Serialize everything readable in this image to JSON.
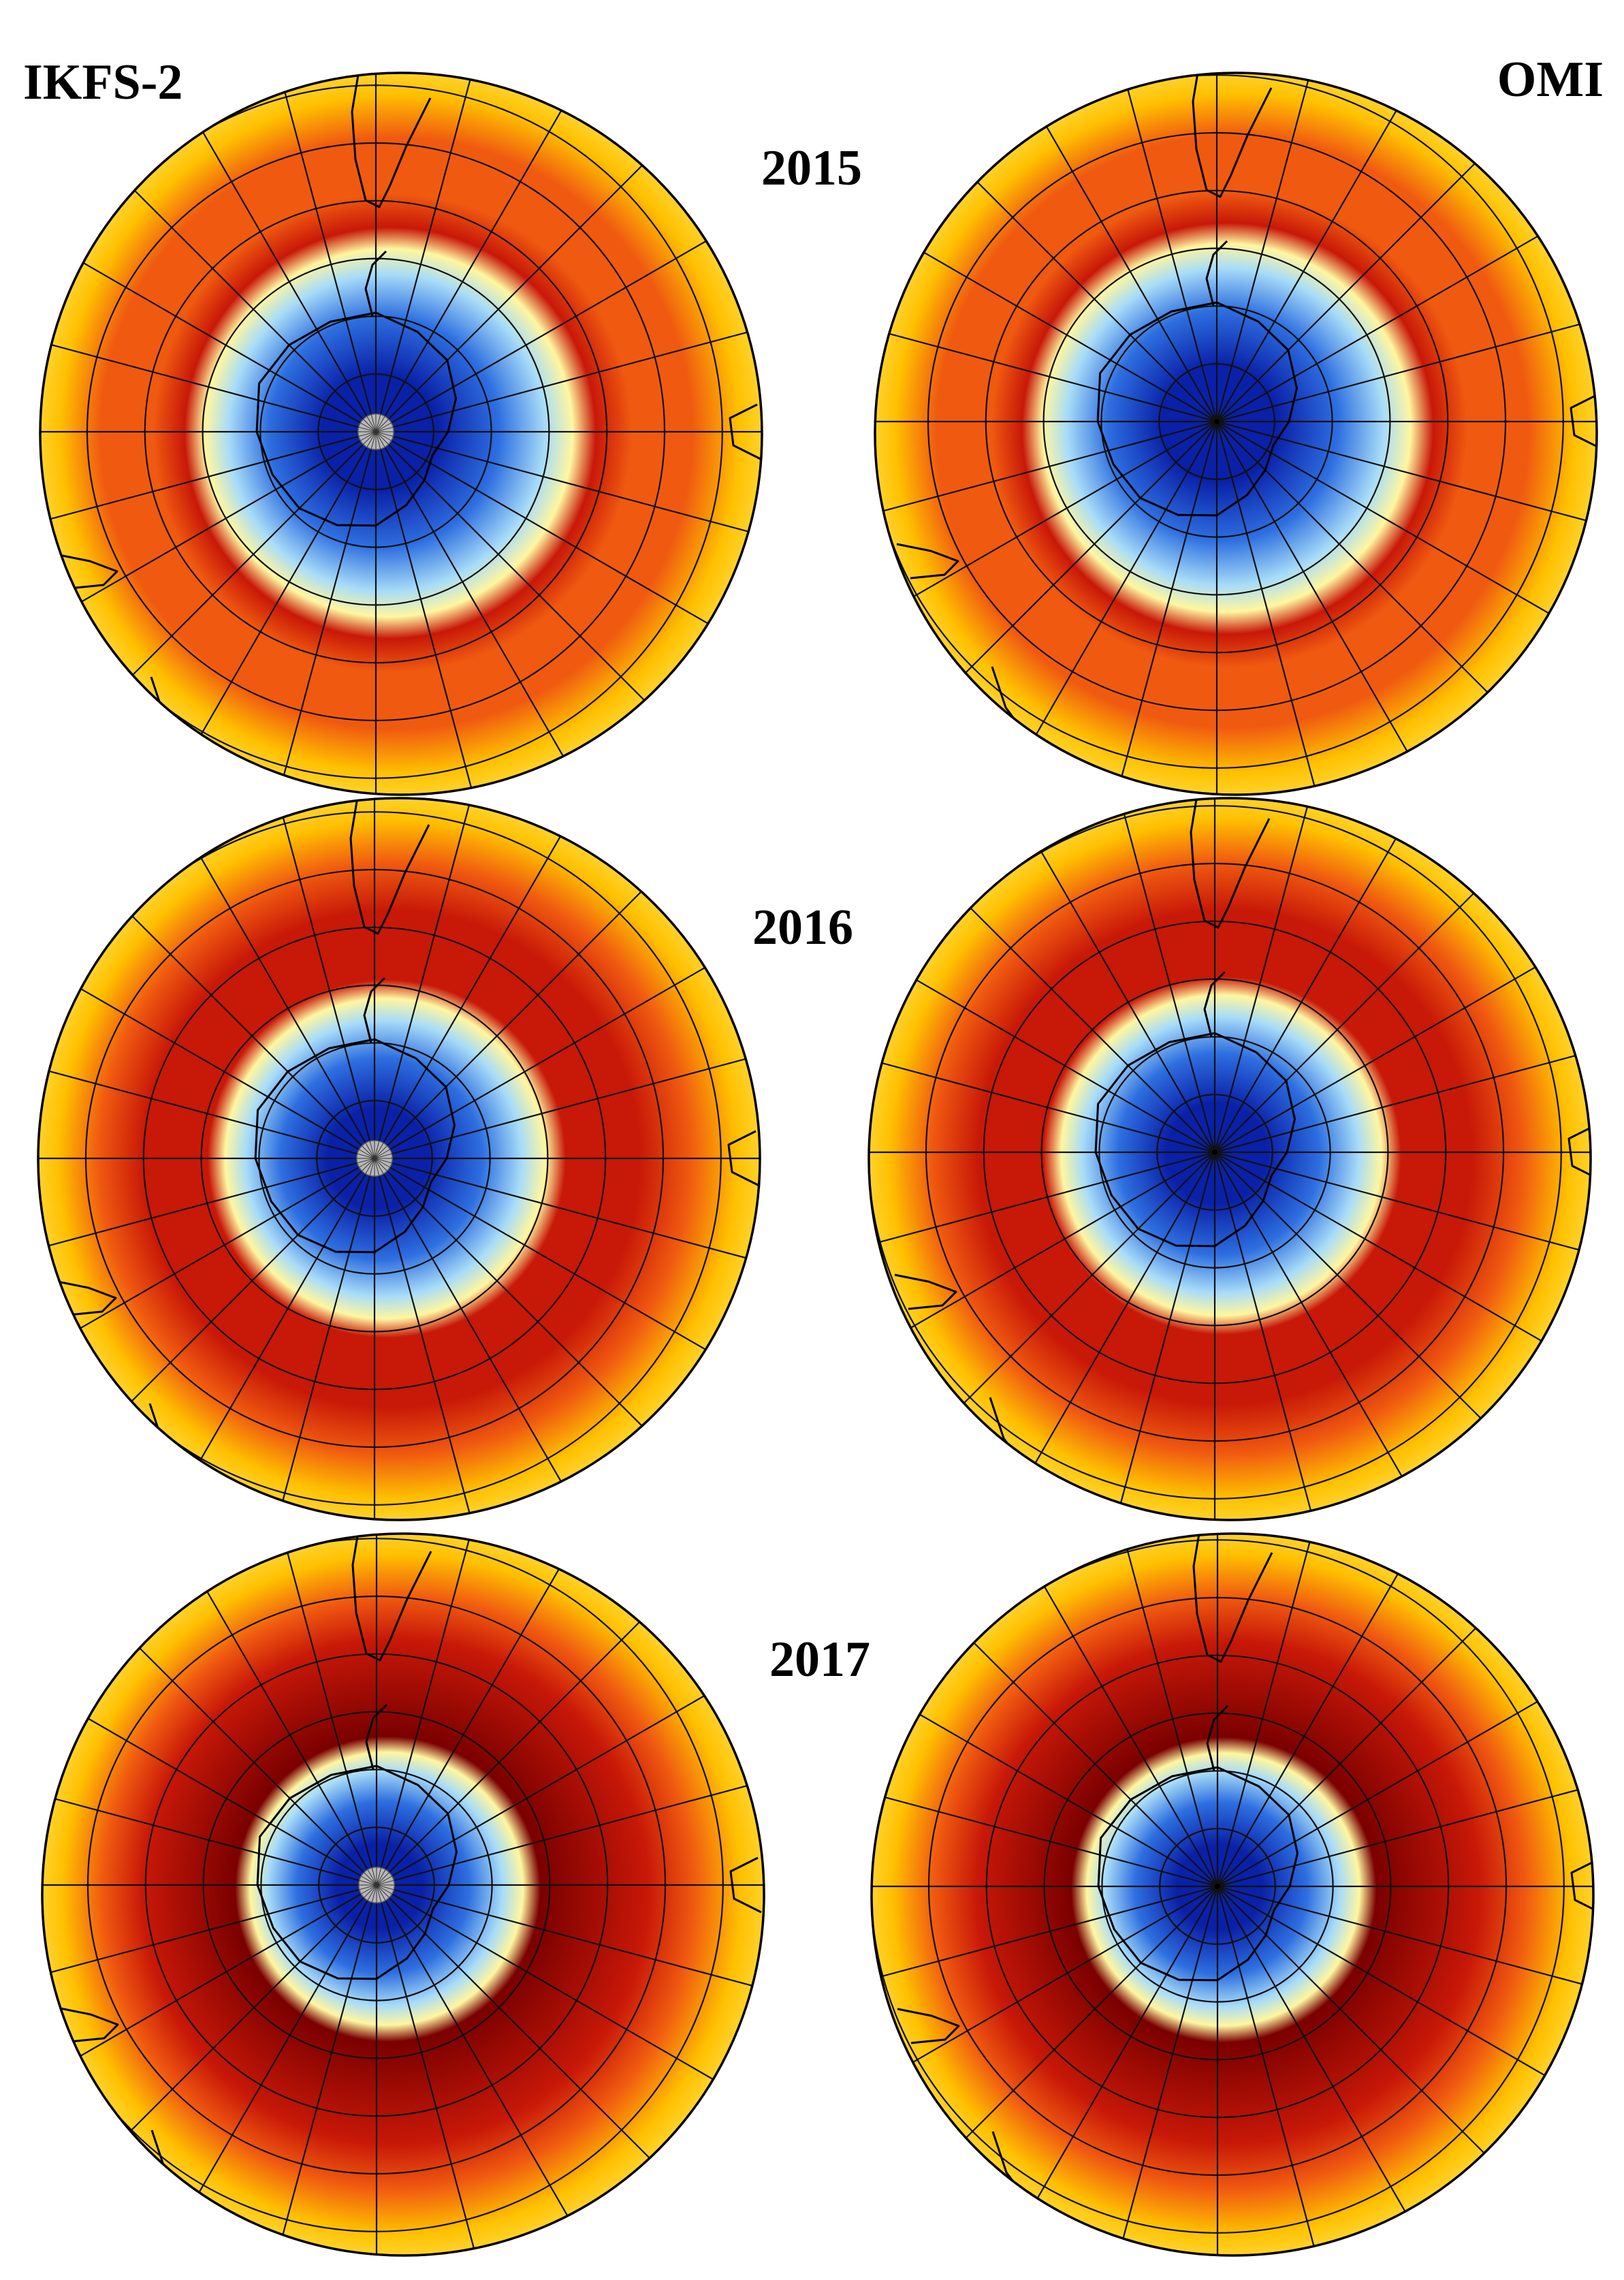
{
  "figure": {
    "left_label": "IKFS-2",
    "right_label": "OMI",
    "years": [
      "2015",
      "2016",
      "2017"
    ]
  },
  "colors": {
    "hole_core": "#0a20a8",
    "hole_mid": "#2e6fe0",
    "hole_edge": "#a8dcf8",
    "transition": "#fff6a0",
    "outer": "#ffc000",
    "collar": "#f05a10",
    "collar_peak": "#c81808",
    "collar_max": "#7a0000",
    "grid_line": "#111111",
    "pole_disc": "#b8b8b8"
  },
  "maps": [
    {
      "instrument": "IKFS-2",
      "year": "2015",
      "hole_intensity": 1.0,
      "collar_intensity": 0.55,
      "pole_gap": true
    },
    {
      "instrument": "OMI",
      "year": "2015",
      "hole_intensity": 1.0,
      "collar_intensity": 0.5,
      "pole_gap": false
    },
    {
      "instrument": "IKFS-2",
      "year": "2016",
      "hole_intensity": 0.85,
      "collar_intensity": 0.85,
      "pole_gap": true
    },
    {
      "instrument": "OMI",
      "year": "2016",
      "hole_intensity": 0.85,
      "collar_intensity": 0.8,
      "pole_gap": false
    },
    {
      "instrument": "IKFS-2",
      "year": "2017",
      "hole_intensity": 0.7,
      "collar_intensity": 1.0,
      "pole_gap": true
    },
    {
      "instrument": "OMI",
      "year": "2017",
      "hole_intensity": 0.7,
      "collar_intensity": 0.95,
      "pole_gap": false
    }
  ]
}
